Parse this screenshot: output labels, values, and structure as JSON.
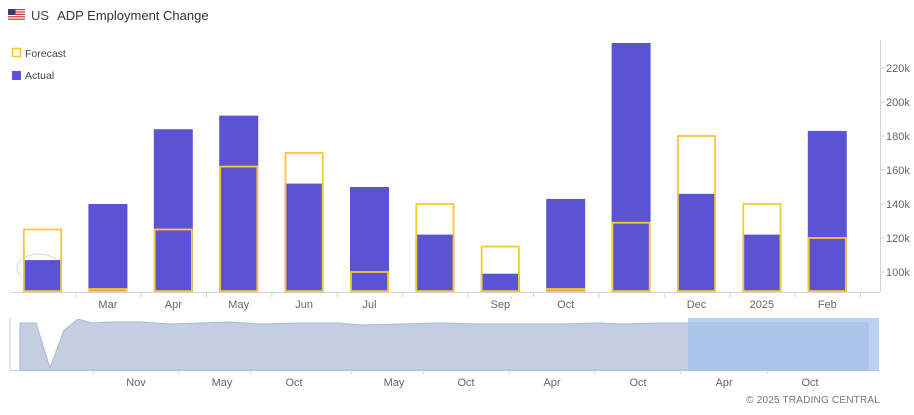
{
  "header": {
    "country": "US",
    "title": "ADP Employment Change"
  },
  "legend": {
    "forecast": "Forecast",
    "actual": "Actual"
  },
  "colors": {
    "actual": "#5a53d3",
    "forecast": "#f9c933",
    "navigator_fill": "#c3cee0",
    "navigator_line": "#aab8cf",
    "navigator_selection": "#a4c2ec"
  },
  "chart_data": {
    "type": "bar",
    "title": "ADP Employment Change",
    "ylim": [
      88000,
      240000
    ],
    "y_ticks": [
      100000,
      120000,
      140000,
      160000,
      180000,
      200000,
      220000
    ],
    "y_tick_labels": [
      "100k",
      "120k",
      "140k",
      "160k",
      "180k",
      "200k",
      "220k"
    ],
    "x_tick_labels": [
      "",
      "Mar",
      "Apr",
      "May",
      "Jun",
      "Jul",
      "",
      "Sep",
      "Oct",
      "",
      "Dec",
      "2025",
      "Feb"
    ],
    "series": [
      {
        "name": "Forecast",
        "values": [
          125000,
          90000,
          125000,
          162000,
          170000,
          100000,
          140000,
          115000,
          90000,
          129000,
          180000,
          140000,
          120000
        ]
      },
      {
        "name": "Actual",
        "values": [
          107000,
          140000,
          184000,
          192000,
          152000,
          150000,
          122000,
          99000,
          143000,
          235000,
          146000,
          122000,
          183000
        ]
      }
    ],
    "grid": false,
    "legend_position": "top-left"
  },
  "navigator": {
    "x_labels": [
      "Nov",
      "May",
      "Oct",
      "May",
      "Oct",
      "Apr",
      "Oct",
      "Apr",
      "Oct"
    ]
  },
  "footer": {
    "copyright": "© 2025 TRADING CENTRAL"
  }
}
